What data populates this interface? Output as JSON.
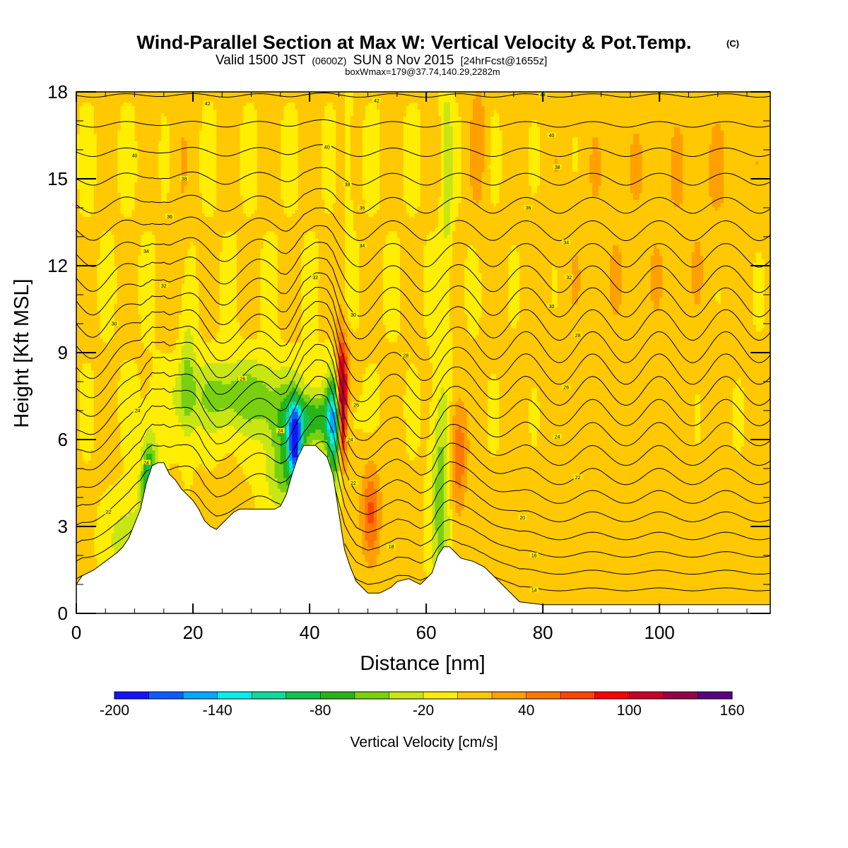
{
  "chart_data": {
    "type": "heatmap",
    "title": "Wind-Parallel Section at Max W: Vertical Velocity & Pot.Temp.",
    "title_unit": "(C)",
    "subtitle_main": "Valid 1500 JST",
    "subtitle_utc": "(0600Z)",
    "subtitle_date": "SUN 8 Nov 2015",
    "subtitle_fcst": "[24hrFcst@1655z]",
    "subtitle_box": "boxWmax=179@37.74,140.29,2282m",
    "xlabel": "Distance [nm]",
    "ylabel": "Height [Kft MSL]",
    "xlim": [
      0,
      119
    ],
    "ylim": [
      0,
      18
    ],
    "x_ticks": [
      0,
      20,
      40,
      60,
      80,
      100
    ],
    "y_ticks": [
      0,
      3,
      6,
      9,
      12,
      15,
      18
    ],
    "colorbar": {
      "label": "Vertical Velocity [cm/s]",
      "tick_labels": [
        "-200",
        "-140",
        "-80",
        "-20",
        "40",
        "100",
        "160"
      ],
      "levels": [
        -200,
        -180,
        -160,
        -140,
        -120,
        -100,
        -80,
        -60,
        -40,
        -20,
        0,
        20,
        40,
        60,
        80,
        100,
        120,
        140,
        160
      ],
      "colors": [
        "#1414ff",
        "#0a5cff",
        "#00a8ff",
        "#00f0f0",
        "#14d89a",
        "#14c050",
        "#28b418",
        "#78d010",
        "#c8e614",
        "#ffee00",
        "#ffc800",
        "#ffa000",
        "#ff7800",
        "#ff4600",
        "#ff0000",
        "#c80028",
        "#96004b",
        "#5a0082"
      ]
    },
    "terrain": [
      [
        0,
        1.0
      ],
      [
        1,
        1.3
      ],
      [
        3,
        1.5
      ],
      [
        5,
        1.8
      ],
      [
        7,
        2.1
      ],
      [
        8,
        2.3
      ],
      [
        9,
        2.6
      ],
      [
        10,
        3.1
      ],
      [
        11,
        3.6
      ],
      [
        12,
        4.5
      ],
      [
        13,
        5.1
      ],
      [
        14,
        5.2
      ],
      [
        15,
        5.2
      ],
      [
        16,
        4.8
      ],
      [
        17,
        4.6
      ],
      [
        18,
        4.3
      ],
      [
        19,
        4.1
      ],
      [
        20,
        3.9
      ],
      [
        21,
        3.6
      ],
      [
        22,
        3.2
      ],
      [
        23,
        3.0
      ],
      [
        24,
        2.9
      ],
      [
        25,
        3.1
      ],
      [
        26,
        3.3
      ],
      [
        27,
        3.5
      ],
      [
        28,
        3.6
      ],
      [
        30,
        3.6
      ],
      [
        32,
        3.6
      ],
      [
        34,
        3.6
      ],
      [
        35,
        3.7
      ],
      [
        36,
        4.1
      ],
      [
        37,
        4.8
      ],
      [
        38,
        5.4
      ],
      [
        39,
        5.8
      ],
      [
        40,
        5.8
      ],
      [
        41,
        5.8
      ],
      [
        42,
        5.6
      ],
      [
        43,
        5.4
      ],
      [
        44,
        4.8
      ],
      [
        45,
        3.5
      ],
      [
        46,
        2.2
      ],
      [
        47,
        1.6
      ],
      [
        48,
        1.1
      ],
      [
        49,
        0.9
      ],
      [
        50,
        0.7
      ],
      [
        52,
        0.7
      ],
      [
        54,
        0.9
      ],
      [
        55,
        1.1
      ],
      [
        57,
        1.2
      ],
      [
        58,
        1.1
      ],
      [
        59,
        1.0
      ],
      [
        60,
        1.2
      ],
      [
        61,
        1.4
      ],
      [
        62,
        2.0
      ],
      [
        63,
        2.3
      ],
      [
        64,
        2.3
      ],
      [
        65,
        2.1
      ],
      [
        66,
        1.9
      ],
      [
        68,
        1.8
      ],
      [
        70,
        1.6
      ],
      [
        71,
        1.4
      ],
      [
        72,
        1.2
      ],
      [
        73,
        1.0
      ],
      [
        74,
        0.8
      ],
      [
        75,
        0.6
      ],
      [
        76,
        0.4
      ],
      [
        80,
        0.3
      ],
      [
        100,
        0.3
      ],
      [
        119,
        0.3
      ]
    ],
    "theta_levels": [
      10,
      11,
      12,
      13,
      14,
      15,
      16,
      17,
      18,
      19,
      20,
      21,
      22,
      23,
      24,
      25,
      26,
      27,
      28,
      29,
      30,
      31,
      32,
      33,
      34,
      35,
      36,
      37,
      38,
      39,
      40,
      41,
      42,
      43,
      44
    ],
    "contour_labels": [
      {
        "x": 22.5,
        "y": 17.6,
        "text": "42"
      },
      {
        "x": 51.5,
        "y": 17.7,
        "text": "42"
      },
      {
        "x": 80.0,
        "y": 17.9,
        "text": "44"
      },
      {
        "x": 43.0,
        "y": 16.1,
        "text": "40"
      },
      {
        "x": 81.5,
        "y": 16.5,
        "text": "40"
      },
      {
        "x": 10.0,
        "y": 15.8,
        "text": "40"
      },
      {
        "x": 18.5,
        "y": 15.0,
        "text": "38"
      },
      {
        "x": 46.5,
        "y": 14.8,
        "text": "38"
      },
      {
        "x": 82.5,
        "y": 15.4,
        "text": "38"
      },
      {
        "x": 16.0,
        "y": 13.7,
        "text": "36"
      },
      {
        "x": 49.0,
        "y": 14.0,
        "text": "36"
      },
      {
        "x": 77.5,
        "y": 14.0,
        "text": "36"
      },
      {
        "x": 12.0,
        "y": 12.5,
        "text": "34"
      },
      {
        "x": 49.0,
        "y": 12.7,
        "text": "34"
      },
      {
        "x": 84.0,
        "y": 12.8,
        "text": "34"
      },
      {
        "x": 15.0,
        "y": 11.3,
        "text": "32"
      },
      {
        "x": 41.0,
        "y": 11.6,
        "text": "32"
      },
      {
        "x": 84.5,
        "y": 11.6,
        "text": "32"
      },
      {
        "x": 6.5,
        "y": 10.0,
        "text": "30"
      },
      {
        "x": 47.5,
        "y": 10.3,
        "text": "30"
      },
      {
        "x": 81.5,
        "y": 10.6,
        "text": "30"
      },
      {
        "x": 56.5,
        "y": 8.9,
        "text": "28"
      },
      {
        "x": 86.0,
        "y": 9.6,
        "text": "28"
      },
      {
        "x": 28.5,
        "y": 8.1,
        "text": "26"
      },
      {
        "x": 48.0,
        "y": 7.2,
        "text": "26"
      },
      {
        "x": 84.0,
        "y": 7.8,
        "text": "26"
      },
      {
        "x": 10.5,
        "y": 7.0,
        "text": "24"
      },
      {
        "x": 35.0,
        "y": 6.3,
        "text": "24"
      },
      {
        "x": 47.0,
        "y": 6.0,
        "text": "24"
      },
      {
        "x": 82.5,
        "y": 6.1,
        "text": "24"
      },
      {
        "x": 12.0,
        "y": 5.2,
        "text": "24"
      },
      {
        "x": 47.5,
        "y": 4.5,
        "text": "22"
      },
      {
        "x": 86.0,
        "y": 4.7,
        "text": "22"
      },
      {
        "x": 5.5,
        "y": 3.5,
        "text": "22"
      },
      {
        "x": 76.5,
        "y": 3.3,
        "text": "20"
      },
      {
        "x": 54.0,
        "y": 2.3,
        "text": "18"
      },
      {
        "x": 78.5,
        "y": 2.0,
        "text": "16"
      },
      {
        "x": 78.5,
        "y": 0.8,
        "text": "14"
      }
    ]
  }
}
